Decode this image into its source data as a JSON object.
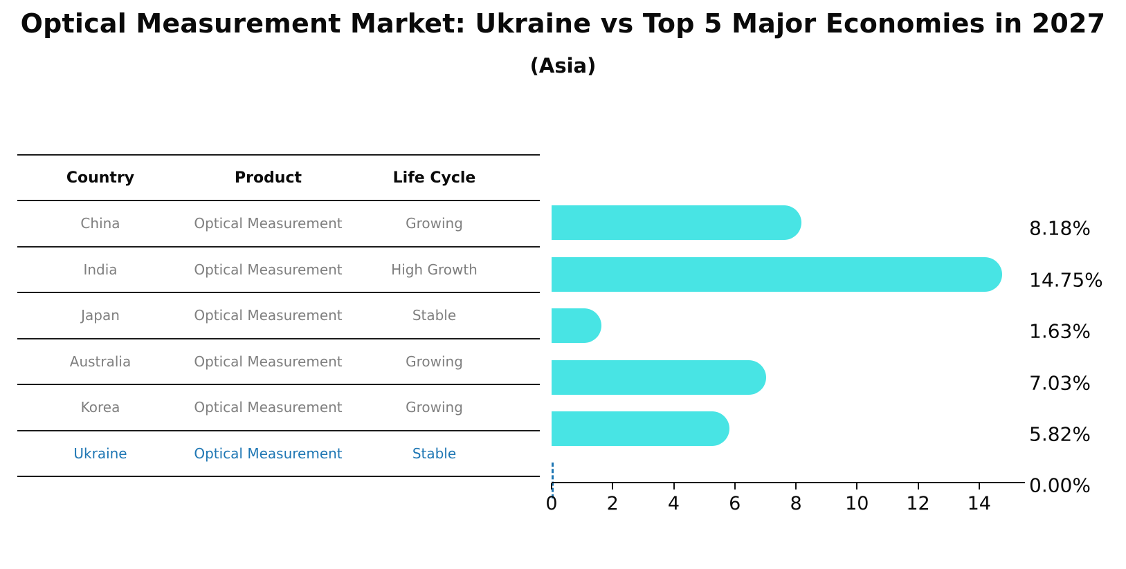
{
  "title": "Optical Measurement Market: Ukraine vs Top 5 Major Economies in 2027",
  "subtitle": "(Asia)",
  "table": {
    "headers": [
      "Country",
      "Product",
      "Life Cycle"
    ],
    "rows": [
      {
        "country": "China",
        "product": "Optical Measurement",
        "life_cycle": "Growing",
        "highlight": false
      },
      {
        "country": "India",
        "product": "Optical Measurement",
        "life_cycle": "High Growth",
        "highlight": false
      },
      {
        "country": "Japan",
        "product": "Optical Measurement",
        "life_cycle": "Stable",
        "highlight": false
      },
      {
        "country": "Australia",
        "product": "Optical Measurement",
        "life_cycle": "Growing",
        "highlight": false
      },
      {
        "country": "Korea",
        "product": "Optical Measurement",
        "life_cycle": "Growing",
        "highlight": false
      },
      {
        "country": "Ukraine",
        "product": "Optical Measurement",
        "life_cycle": "Stable",
        "highlight": true
      }
    ]
  },
  "chart_data": {
    "type": "bar",
    "orientation": "horizontal",
    "title": "Optical Measurement Market: Ukraine vs Top 5 Major Economies in 2027",
    "subtitle": "(Asia)",
    "categories": [
      "China",
      "India",
      "Japan",
      "Australia",
      "Korea",
      "Ukraine"
    ],
    "values": [
      8.18,
      14.75,
      1.63,
      7.03,
      5.82,
      0.0
    ],
    "labels": [
      "8.18%",
      "14.75%",
      "1.63%",
      "7.03%",
      "5.82%",
      "0.00%"
    ],
    "xticks": [
      0,
      2,
      4,
      6,
      8,
      10,
      12,
      14
    ],
    "xlim": [
      0,
      15.5
    ],
    "grid": false,
    "legend_position": "none",
    "bar_color": "#48e4e4",
    "highlight_index": 5,
    "highlight_color": "#1f77b4",
    "axis_color": "#111111",
    "muted_text_color": "#7f7f7f"
  }
}
